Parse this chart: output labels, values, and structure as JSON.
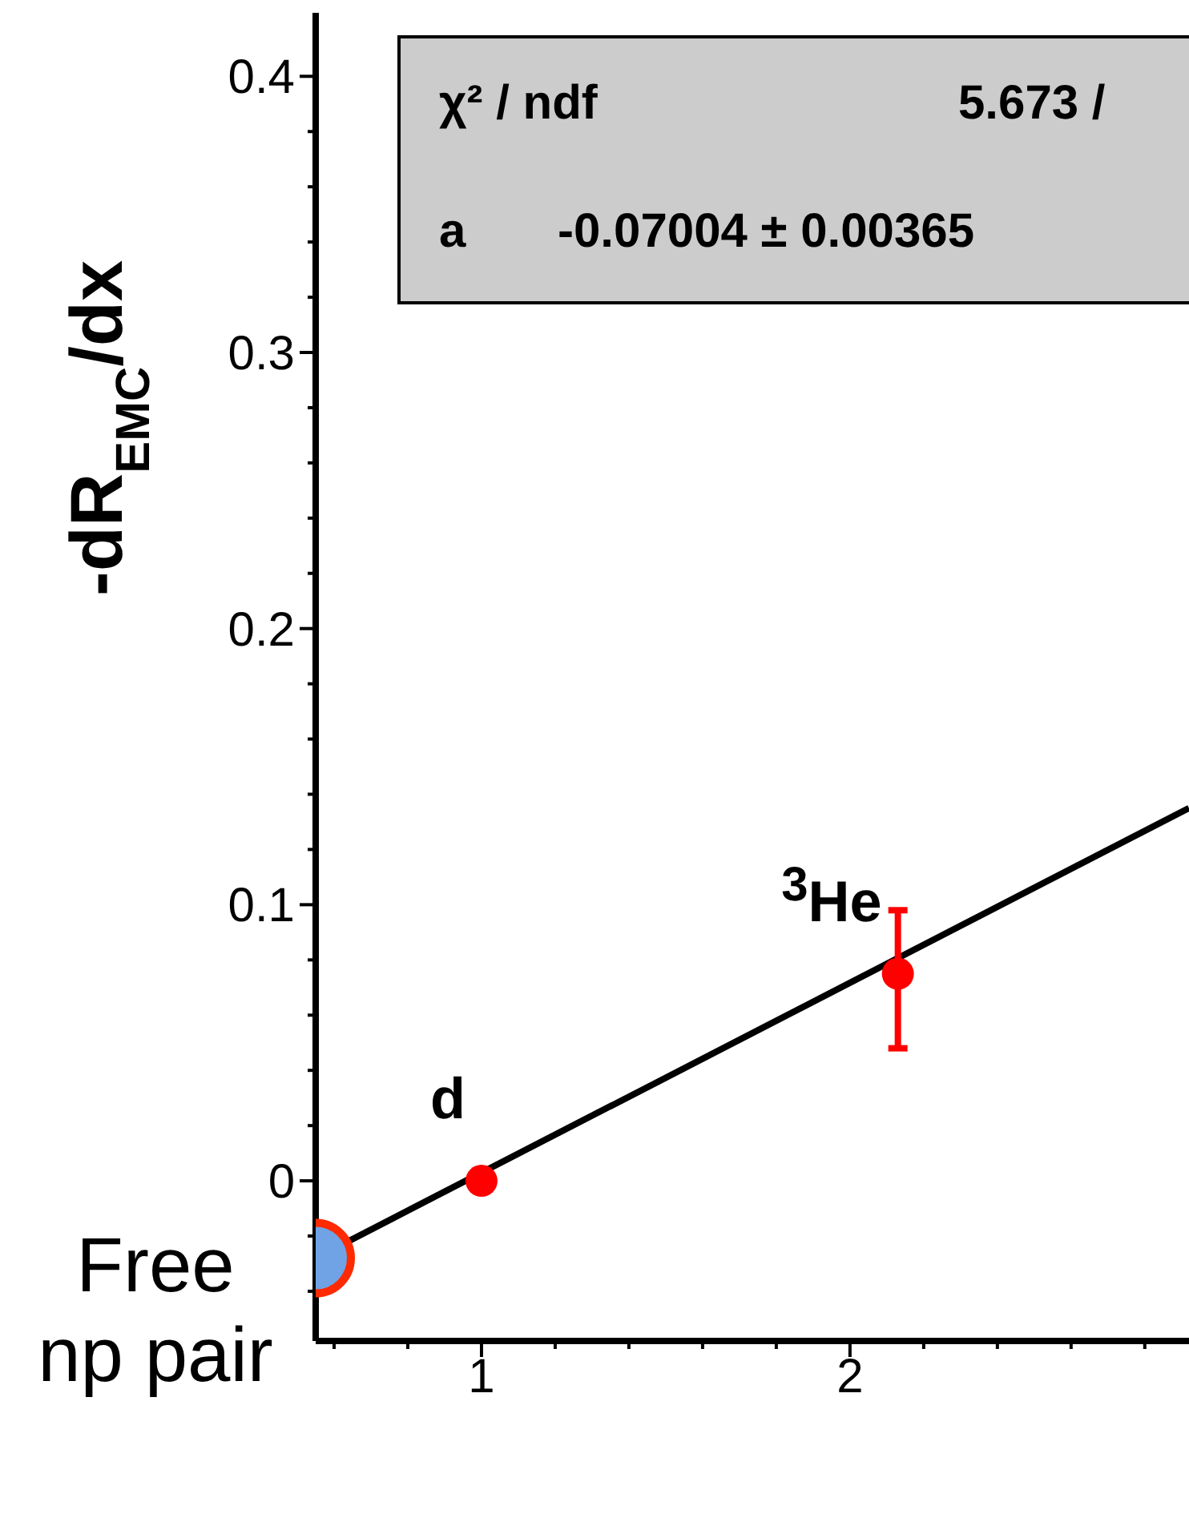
{
  "chart_data": {
    "type": "scatter",
    "ylabel": "-dR$_{EMC}$/dx",
    "xlim": [
      0.55,
      2.92
    ],
    "xticks": [
      {
        "value": 0.6,
        "label": null
      },
      {
        "value": 0.8,
        "label": null
      },
      1,
      {
        "value": 1.2,
        "label": null
      },
      {
        "value": 1.4,
        "label": null
      },
      {
        "value": 1.6,
        "label": null
      },
      {
        "value": 1.8,
        "label": null
      },
      2,
      {
        "value": 2.2,
        "label": null
      },
      {
        "value": 2.4,
        "label": null
      },
      {
        "value": 2.6,
        "label": null
      },
      {
        "value": 2.8,
        "label": null
      }
    ],
    "ylim": [
      -0.058,
      0.423
    ],
    "yticks": [
      {
        "value": -0.04,
        "label": null
      },
      {
        "value": -0.02,
        "label": null
      },
      0,
      {
        "value": 0.02,
        "label": null
      },
      {
        "value": 0.04,
        "label": null
      },
      {
        "value": 0.06,
        "label": null
      },
      {
        "value": 0.08,
        "label": null
      },
      0.1,
      {
        "value": 0.12,
        "label": null
      },
      {
        "value": 0.14,
        "label": null
      },
      {
        "value": 0.16,
        "label": null
      },
      {
        "value": 0.18,
        "label": null
      },
      0.2,
      {
        "value": 0.22,
        "label": null
      },
      {
        "value": 0.24,
        "label": null
      },
      {
        "value": 0.26,
        "label": null
      },
      {
        "value": 0.28,
        "label": null
      },
      0.3,
      {
        "value": 0.32,
        "label": null
      },
      {
        "value": 0.34,
        "label": null
      },
      {
        "value": 0.36,
        "label": null
      },
      {
        "value": 0.38,
        "label": null
      },
      0.4
    ],
    "marker": "circle",
    "series": [
      {
        "type": "line",
        "marker": "none",
        "color": "#000000",
        "x": [
          0.55,
          2.92
        ],
        "values": [
          -0.028,
          0.135
        ]
      },
      {
        "color": "#ff0000",
        "x": [
          1,
          2.13
        ],
        "values": [
          0,
          0.075
        ],
        "errors": [
          null,
          [
            0.048,
            0.098
          ]
        ]
      },
      {
        "color": "#6fa3e6",
        "x": [
          0.55
        ],
        "values": [
          -0.028
        ]
      }
    ],
    "annotations": [
      "χ² / ndf",
      "5.673 /",
      "a",
      "-0.07004 ± 0.00365",
      {
        "text": "d",
        "x": 1,
        "y": 0
      },
      {
        "text": "$^{3}$He",
        "x": 2.13,
        "y": 0.075
      },
      {
        "text": "Free np pair",
        "x": 0.55,
        "y": -0.028
      }
    ]
  }
}
